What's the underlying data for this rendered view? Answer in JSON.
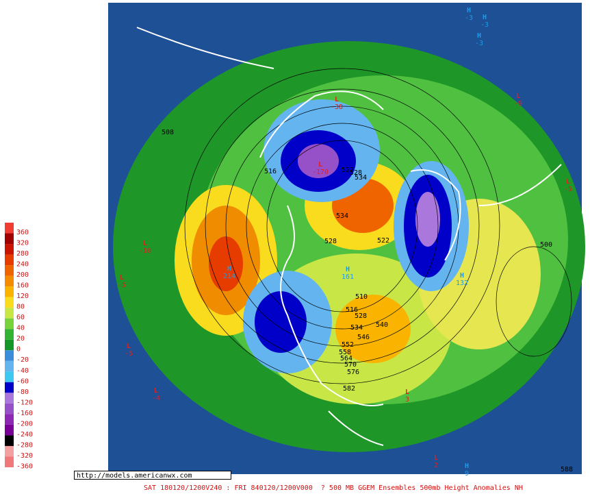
{
  "url": "http://models.americanwx.com",
  "caption": "SAT 180120/1200V240 : FRI 840120/1200V000  ? 500 MB GGEM Ensembles 500mb Height Anomalies NH",
  "colorbar": [
    {
      "value": 360,
      "color": "#f03c32"
    },
    {
      "value": 320,
      "color": "#a00000"
    },
    {
      "value": 280,
      "color": "#c81400"
    },
    {
      "value": 240,
      "color": "#e63c00"
    },
    {
      "value": 200,
      "color": "#f06400"
    },
    {
      "value": 160,
      "color": "#f58c00"
    },
    {
      "value": 120,
      "color": "#fab400"
    },
    {
      "value": 80,
      "color": "#fadc1e"
    },
    {
      "value": 60,
      "color": "#c8e646"
    },
    {
      "value": 40,
      "color": "#78d23c"
    },
    {
      "value": 20,
      "color": "#32b432"
    },
    {
      "value": 0,
      "color": "#149628"
    },
    {
      "value": -20,
      "color": "#3c8cdc"
    },
    {
      "value": -40,
      "color": "#64b4f0"
    },
    {
      "value": -60,
      "color": "#3cc8f0"
    },
    {
      "value": -80,
      "color": "#0000c8"
    },
    {
      "value": -120,
      "color": "#aa78dc"
    },
    {
      "value": -160,
      "color": "#9650c8"
    },
    {
      "value": -200,
      "color": "#8c28b4"
    },
    {
      "value": -240,
      "color": "#780096"
    },
    {
      "value": -280,
      "color": "#000000"
    },
    {
      "value": -320,
      "color": "#f5a0a0"
    },
    {
      "value": -360,
      "color": "#f07878"
    }
  ],
  "centers": [
    {
      "letter": "L",
      "value": -38
    },
    {
      "letter": "L",
      "value": -170
    },
    {
      "letter": "L",
      "value": -10
    },
    {
      "letter": "L",
      "value": -5
    },
    {
      "letter": "L",
      "value": -5
    },
    {
      "letter": "L",
      "value": -4
    },
    {
      "letter": "L",
      "value": -9
    },
    {
      "letter": "L",
      "value": -5
    },
    {
      "letter": "H",
      "value": 161
    },
    {
      "letter": "H",
      "value": 132
    },
    {
      "letter": "H",
      "value": 214
    },
    {
      "letter": "L",
      "value": 3
    },
    {
      "letter": "L",
      "value": 2
    },
    {
      "letter": "H",
      "value": 9
    },
    {
      "letter": "H",
      "value": -3
    },
    {
      "letter": "H",
      "value": -3
    },
    {
      "letter": "H",
      "value": -3
    }
  ],
  "contours": [
    508,
    516,
    522,
    528,
    534,
    534,
    528,
    522,
    500,
    510,
    516,
    528,
    534,
    540,
    546,
    552,
    558,
    564,
    570,
    576,
    582,
    588
  ]
}
